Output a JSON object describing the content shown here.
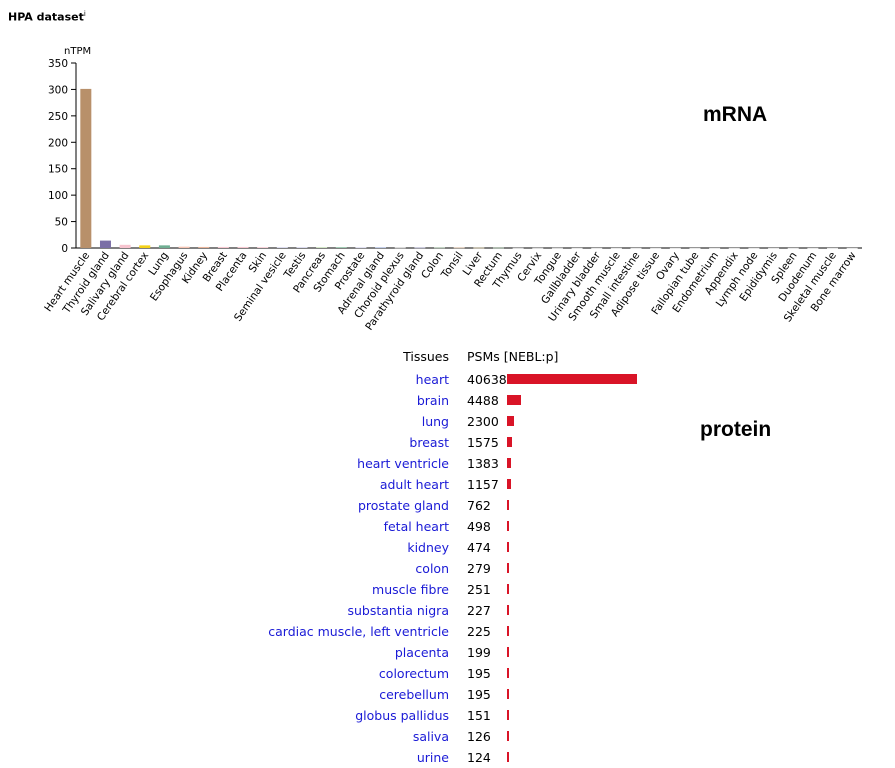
{
  "dataset": {
    "title": "HPA dataset",
    "info_marker": "i"
  },
  "labels": {
    "mrna": "mRNA",
    "protein": "protein"
  },
  "colors": {
    "protein_bar": "#d91427",
    "link": "#1a1ad6"
  },
  "chart_data": {
    "type": "bar",
    "ylabel": "nTPM",
    "ylim": [
      0,
      350
    ],
    "yticks": [
      0,
      50,
      100,
      150,
      200,
      250,
      300,
      350
    ],
    "categories": [
      "Heart muscle",
      "Thyroid gland",
      "Salivary gland",
      "Cerebral cortex",
      "Lung",
      "Esophagus",
      "Kidney",
      "Breast",
      "Placenta",
      "Skin",
      "Seminal vesicle",
      "Testis",
      "Pancreas",
      "Stomach",
      "Prostate",
      "Adrenal gland",
      "Choroid plexus",
      "Parathyroid gland",
      "Colon",
      "Tonsil",
      "Liver",
      "Rectum",
      "Thymus",
      "Cervix",
      "Tongue",
      "Gallbladder",
      "Urinary bladder",
      "Smooth muscle",
      "Small intestine",
      "Adipose tissue",
      "Ovary",
      "Fallopian tube",
      "Endometrium",
      "Appendix",
      "Lymph node",
      "Epididymis",
      "Spleen",
      "Duodenum",
      "Skeletal muscle",
      "Bone marrow"
    ],
    "values": [
      301,
      14,
      6,
      5,
      5,
      2.5,
      2,
      2,
      2,
      1.5,
      1.2,
      1.2,
      1.2,
      1.5,
      1,
      1,
      0.8,
      0.8,
      0.8,
      0.8,
      0.6,
      0.6,
      0.3,
      0.3,
      0.3,
      0.2,
      0.2,
      0.2,
      0.2,
      0.2,
      0.2,
      0.2,
      0.2,
      0.2,
      0.2,
      0.2,
      0.2,
      0.2,
      0.2,
      0.2
    ],
    "colors": [
      "#b8906a",
      "#7b6fa6",
      "#f7c4cf",
      "#f3d11a",
      "#6fae92",
      "#f6c4b3",
      "#e9b59b",
      "#f7c8d1",
      "#f7c8d1",
      "#f7c8d1",
      "#c7c7e6",
      "#c7c7e6",
      "#b9d8a6",
      "#8bbfa0",
      "#c7c7e6",
      "#8fa4d6",
      "#d8d8d8",
      "#b8b8e0",
      "#9fc4a0",
      "#f0c9a6",
      "#e8d6a6",
      "#9fc4a0",
      "#d8d8d8",
      "#d8d8d8",
      "#d8d8d8",
      "#d8d8d8",
      "#d8d8d8",
      "#d8d8d8",
      "#d8d8d8",
      "#d8d8d8",
      "#d8d8d8",
      "#d8d8d8",
      "#d8d8d8",
      "#d8d8d8",
      "#d8d8d8",
      "#d8d8d8",
      "#d8d8d8",
      "#d8d8d8",
      "#d8d8d8",
      "#d8d8d8"
    ]
  },
  "protein": {
    "headers": {
      "tissues": "Tissues",
      "psms": "PSMs [NEBL:p]"
    },
    "rows": [
      {
        "tissue": "heart",
        "psms": 40638
      },
      {
        "tissue": "brain",
        "psms": 4488
      },
      {
        "tissue": "lung",
        "psms": 2300
      },
      {
        "tissue": "breast",
        "psms": 1575
      },
      {
        "tissue": "heart ventricle",
        "psms": 1383
      },
      {
        "tissue": "adult heart",
        "psms": 1157
      },
      {
        "tissue": "prostate gland",
        "psms": 762
      },
      {
        "tissue": "fetal heart",
        "psms": 498
      },
      {
        "tissue": "kidney",
        "psms": 474
      },
      {
        "tissue": "colon",
        "psms": 279
      },
      {
        "tissue": "muscle fibre",
        "psms": 251
      },
      {
        "tissue": "substantia nigra",
        "psms": 227
      },
      {
        "tissue": "cardiac muscle, left ventricle",
        "psms": 225
      },
      {
        "tissue": "placenta",
        "psms": 199
      },
      {
        "tissue": "colorectum",
        "psms": 195
      },
      {
        "tissue": "cerebellum",
        "psms": 195
      },
      {
        "tissue": "globus pallidus",
        "psms": 151
      },
      {
        "tissue": "saliva",
        "psms": 126
      },
      {
        "tissue": "urine",
        "psms": 124
      }
    ]
  }
}
